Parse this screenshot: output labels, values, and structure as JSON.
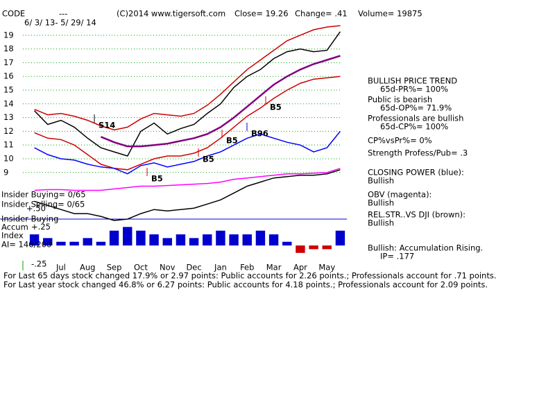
{
  "header": {
    "symbol": "CODE",
    "dash": "---",
    "source": "(C)2014 www.tigersoft.com",
    "close": "Close= 19.26",
    "change": "Change= .41",
    "volume": "Volume= 19875",
    "range": "6/ 3/ 13- 5/ 29/ 14"
  },
  "chart_data": [
    {
      "type": "line",
      "categories": [
        null,
        null,
        "Jul",
        null,
        "Aug",
        null,
        "Sep",
        null,
        "Oct",
        null,
        "Nov",
        null,
        "Dec",
        null,
        "Jan",
        null,
        "Feb",
        null,
        "Mar",
        null,
        "Apr",
        null,
        "May",
        null
      ],
      "ylim": [
        5.4,
        19.8
      ],
      "yticks": [
        9,
        10,
        11,
        12,
        13,
        14,
        15,
        16,
        17,
        18,
        19
      ],
      "grid": true,
      "series": [
        {
          "color": "#000000",
          "values": [
            13.5,
            12.5,
            12.8,
            12.3,
            11.5,
            10.8,
            10.5,
            10.2,
            12.0,
            12.6,
            11.8,
            12.2,
            12.5,
            13.3,
            14.0,
            15.2,
            16.0,
            16.5,
            17.3,
            17.8,
            18.0,
            17.8,
            17.9,
            19.26
          ]
        },
        {
          "color": "#cc0000",
          "values": [
            13.6,
            13.2,
            13.3,
            13.1,
            12.8,
            12.4,
            12.1,
            12.3,
            12.9,
            13.3,
            13.2,
            13.1,
            13.3,
            13.9,
            14.7,
            15.6,
            16.5,
            17.2,
            17.9,
            18.6,
            19.0,
            19.4,
            19.6,
            19.7
          ]
        },
        {
          "color": "#cc0000",
          "values": [
            11.9,
            11.5,
            11.4,
            11.0,
            10.3,
            9.6,
            9.3,
            9.2,
            9.6,
            10.0,
            10.2,
            10.2,
            10.4,
            10.8,
            11.5,
            12.3,
            13.1,
            13.7,
            14.4,
            15.0,
            15.5,
            15.8,
            15.9,
            16.0
          ]
        },
        {
          "color": "#800080",
          "values": [
            null,
            null,
            null,
            null,
            null,
            11.6,
            11.2,
            10.9,
            10.9,
            11.0,
            11.1,
            11.3,
            11.5,
            11.8,
            12.3,
            13.0,
            13.8,
            14.6,
            15.4,
            16.0,
            16.5,
            16.9,
            17.2,
            17.5
          ]
        },
        {
          "color": "#0000ff",
          "values": [
            10.8,
            10.3,
            10.0,
            9.9,
            9.6,
            9.4,
            9.3,
            8.9,
            9.5,
            9.7,
            9.4,
            9.6,
            9.8,
            10.2,
            10.5,
            11.0,
            11.5,
            11.8,
            11.5,
            11.2,
            11.0,
            10.5,
            10.8,
            12.0
          ]
        },
        {
          "color": "#ff00ff",
          "values": [
            7.7,
            7.75,
            7.75,
            7.7,
            7.7,
            7.7,
            7.8,
            7.9,
            8.0,
            8.0,
            8.05,
            8.1,
            8.15,
            8.2,
            8.3,
            8.5,
            8.6,
            8.7,
            8.8,
            8.9,
            8.9,
            8.95,
            9.0,
            9.3
          ]
        },
        {
          "color": "#000000",
          "values": [
            6.9,
            6.6,
            6.3,
            6.0,
            6.0,
            5.8,
            5.5,
            5.6,
            6.0,
            6.3,
            6.2,
            6.3,
            6.4,
            6.7,
            7.0,
            7.5,
            8.0,
            8.3,
            8.6,
            8.7,
            8.8,
            8.8,
            8.9,
            9.2
          ]
        }
      ],
      "signals": [
        "S14",
        "B5",
        "B5",
        "B5",
        "B96",
        "B5"
      ]
    },
    {
      "type": "bar",
      "ylim": [
        -0.28,
        0.3
      ],
      "yticks": [
        {
          "value": 0.25,
          "label": "+.25"
        },
        {
          "value": -0.25,
          "label": "-.25"
        }
      ],
      "color": "#0000cc",
      "negative_color": "#cc0000",
      "values": [
        0.15,
        0.1,
        0.05,
        0.05,
        0.1,
        0.05,
        0.2,
        0.25,
        0.2,
        0.15,
        0.1,
        0.15,
        0.1,
        0.15,
        0.2,
        0.15,
        0.15,
        0.2,
        0.15,
        0.05,
        -0.1,
        -0.05,
        -0.05,
        0.2
      ]
    }
  ],
  "left_labels": [
    "Insider Buying= 0/65",
    "Insider Selling= 0/65",
    "+.50",
    "Insider Buying",
    "Accum",
    "Index",
    "AI= 146/200"
  ],
  "right_panel": [
    "BULLISH PRICE TREND",
    "65d-PR%= 100%",
    "Public is bearish",
    "65d-OP%= 71.9%",
    "Professionals are bullish",
    "65d-CP%= 100%",
    "CP%vsPr%= 0%",
    "Strength Profess/Pub= .3",
    "CLOSING POWER (blue):",
    "Bullish",
    "OBV (magenta):",
    "Bullish",
    "REL.STR..VS DJI (brown):",
    "Bullish",
    "Bullish: Accumulation Rising.",
    "IP= .177"
  ],
  "footer": [
    "For Last 65 days stock changed 17.9% or 2.97 points: Public accounts for 2.26 points.; Professionals account for .71 points.",
    "For Last year stock changed 46.8% or 6.27 points: Public accounts for 4.18 points.; Professionals account for 2.09 points."
  ]
}
